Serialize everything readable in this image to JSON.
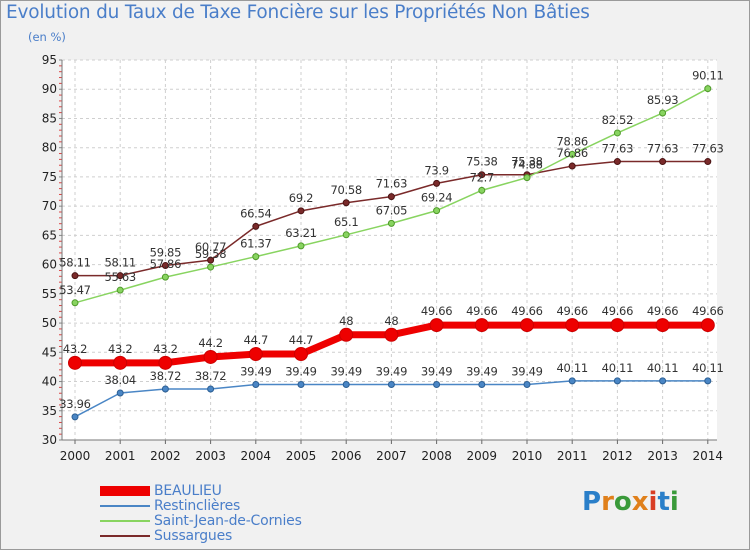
{
  "title": "Evolution du Taux de Taxe Foncière sur les Propriétés Non Bâties",
  "unit_label": "(en %)",
  "logo": {
    "text": "Proxiti",
    "colors": [
      "#2a7fc9",
      "#e0801b",
      "#3a9a3a",
      "#e0801b",
      "#d93d24",
      "#2a7fc9",
      "#3a9a3a"
    ]
  },
  "chart_data": {
    "type": "line",
    "title": "Evolution du Taux de Taxe Foncière sur les Propriétés Non Bâties",
    "ylabel": "(en %)",
    "xlabel": "",
    "ylim": [
      30,
      95
    ],
    "yticks": [
      30,
      35,
      40,
      45,
      50,
      55,
      60,
      65,
      70,
      75,
      80,
      85,
      90,
      95
    ],
    "x": [
      2000,
      2001,
      2002,
      2003,
      2004,
      2005,
      2006,
      2007,
      2008,
      2009,
      2010,
      2011,
      2012,
      2013,
      2014
    ],
    "grid": true,
    "legend": "bottom-left",
    "series": [
      {
        "name": "BEAULIEU",
        "color": "#ee0000",
        "values": [
          43.2,
          43.2,
          43.2,
          44.2,
          44.7,
          44.7,
          48,
          48,
          49.66,
          49.66,
          49.66,
          49.66,
          49.66,
          49.66,
          49.66
        ],
        "labels": [
          "43.2",
          "43.2",
          "43.2",
          "44.2",
          "44.7",
          "44.7",
          "48",
          "48",
          "49.66",
          "49.66",
          "49.66",
          "49.66",
          "49.66",
          "49.66",
          "49.66"
        ]
      },
      {
        "name": "Restinclières",
        "color": "#4a86c5",
        "values": [
          33.96,
          38.04,
          38.72,
          38.72,
          39.49,
          39.49,
          39.49,
          39.49,
          39.49,
          39.49,
          39.49,
          40.11,
          40.11,
          40.11,
          40.11
        ],
        "labels": [
          "33.96",
          "38.04",
          "38.72",
          "38.72",
          "39.49",
          "39.49",
          "39.49",
          "39.49",
          "39.49",
          "39.49",
          "39.49",
          "40.11",
          "40.11",
          "40.11",
          "40.11"
        ]
      },
      {
        "name": "Saint-Jean-de-Cornies",
        "color": "#88d460",
        "values": [
          53.47,
          55.63,
          57.86,
          59.58,
          61.37,
          63.21,
          65.1,
          67.05,
          69.24,
          72.7,
          74.88,
          78.86,
          82.52,
          85.93,
          90.11
        ],
        "labels": [
          "53.47",
          "55.63",
          "57.86",
          "59.58",
          "61.37",
          "63.21",
          "65.1",
          "67.05",
          "69.24",
          "72.7",
          "74.88",
          "78.86",
          "82.52",
          "85.93",
          "90.11"
        ]
      },
      {
        "name": "Sussargues",
        "color": "#7a2a2a",
        "values": [
          58.11,
          58.11,
          59.85,
          60.77,
          66.54,
          69.2,
          70.58,
          71.63,
          73.9,
          75.38,
          75.38,
          76.86,
          77.63,
          77.63,
          77.63
        ],
        "labels": [
          "58.11",
          "58.11",
          "59.85",
          "60.77",
          "66.54",
          "69.2",
          "70.58",
          "71.63",
          "73.9",
          "75.38",
          "75.38",
          "76.86",
          "77.63",
          "77.63",
          "77.63"
        ]
      }
    ]
  }
}
